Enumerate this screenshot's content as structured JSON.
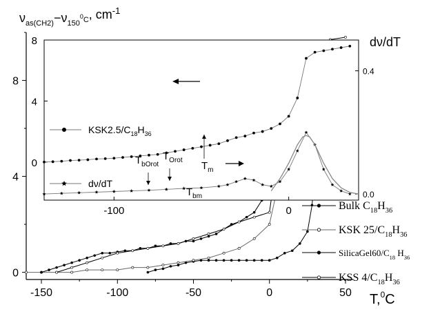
{
  "chart_data": [
    {
      "type": "line",
      "xlabel": "T,",
      "xlabel_sup": "0",
      "xlabel_unit": "C",
      "ylabel_nu": "ν",
      "ylabel_sub1": "as(CH2)",
      "ylabel_minus": "−ν",
      "ylabel_sub2": "150",
      "ylabel_sup2": "0",
      "ylabel_sub3": "C",
      "ylabel_unit": ", cm",
      "ylabel_unit_sup": "-1",
      "xlim": [
        -160,
        55
      ],
      "ylim": [
        -0.3,
        10
      ],
      "xticks": [
        "-150",
        "-100",
        "-50",
        "0",
        "50"
      ],
      "xtick_values": [
        -150,
        -100,
        -50,
        0,
        50
      ],
      "yticks": [
        "0",
        "4",
        "8"
      ],
      "ytick_values": [
        0,
        4,
        8
      ],
      "legend_position": "bottom-right",
      "series": [
        {
          "name_main": "Bulk C",
          "name_sub": "18",
          "name_h": "H",
          "name_sub2": "36",
          "marker": "dot",
          "points": [
            [
              -80,
              0.0
            ],
            [
              -75,
              0.1
            ],
            [
              -70,
              0.15
            ],
            [
              -65,
              0.25
            ],
            [
              -60,
              0.3
            ],
            [
              -55,
              0.4
            ],
            [
              -50,
              0.45
            ],
            [
              -45,
              0.5
            ],
            [
              -40,
              0.5
            ],
            [
              -35,
              0.5
            ],
            [
              -30,
              0.5
            ],
            [
              -25,
              0.5
            ],
            [
              -20,
              0.5
            ],
            [
              -15,
              0.5
            ],
            [
              -10,
              0.5
            ],
            [
              -5,
              0.5
            ],
            [
              0,
              0.5
            ],
            [
              5,
              0.6
            ],
            [
              10,
              0.8
            ],
            [
              15,
              0.9
            ],
            [
              20,
              1.2
            ],
            [
              25,
              1.7
            ],
            [
              28,
              2.8
            ],
            [
              30,
              4.3
            ],
            [
              32,
              6.1
            ],
            [
              35,
              7.8
            ],
            [
              38,
              7.9
            ],
            [
              40,
              8.0
            ],
            [
              45,
              8.2
            ],
            [
              48,
              8.4
            ],
            [
              50,
              8.4
            ]
          ]
        },
        {
          "name_main": "KSK 25/C",
          "name_sub": "18",
          "name_h": "H",
          "name_sub2": "36",
          "marker": "open",
          "points": [
            [
              -160,
              0.0
            ],
            [
              -150,
              0.0
            ],
            [
              -140,
              0.0
            ],
            [
              -130,
              0.0
            ],
            [
              -120,
              0.1
            ],
            [
              -110,
              0.1
            ],
            [
              -100,
              0.1
            ],
            [
              -90,
              0.2
            ],
            [
              -80,
              0.2
            ],
            [
              -70,
              0.3
            ],
            [
              -60,
              0.4
            ],
            [
              -50,
              0.5
            ],
            [
              -40,
              0.6
            ],
            [
              -30,
              0.8
            ],
            [
              -20,
              1.0
            ],
            [
              -10,
              1.4
            ],
            [
              0,
              2.0
            ],
            [
              10,
              4.9
            ],
            [
              20,
              7.0
            ],
            [
              30,
              7.2
            ],
            [
              40,
              7.3
            ],
            [
              50,
              7.5
            ]
          ]
        },
        {
          "name_main": "SilicaGel60/C",
          "name_sub": "18",
          "name_h": " H",
          "name_sub2": "36",
          "marker": "dot",
          "points": [
            [
              -150,
              0.0
            ],
            [
              -145,
              0.1
            ],
            [
              -140,
              0.2
            ],
            [
              -135,
              0.3
            ],
            [
              -130,
              0.4
            ],
            [
              -125,
              0.5
            ],
            [
              -120,
              0.6
            ],
            [
              -115,
              0.7
            ],
            [
              -110,
              0.8
            ],
            [
              -105,
              0.8
            ],
            [
              -100,
              0.85
            ],
            [
              -95,
              0.9
            ],
            [
              -90,
              0.9
            ],
            [
              -85,
              1.0
            ],
            [
              -80,
              1.0
            ],
            [
              -75,
              1.1
            ],
            [
              -70,
              1.1
            ],
            [
              -65,
              1.2
            ],
            [
              -60,
              1.2
            ],
            [
              -55,
              1.3
            ],
            [
              -50,
              1.3
            ],
            [
              -45,
              1.4
            ],
            [
              -40,
              1.5
            ],
            [
              -35,
              1.6
            ],
            [
              -30,
              1.8
            ],
            [
              -25,
              2.0
            ],
            [
              -20,
              2.1
            ],
            [
              -15,
              2.3
            ],
            [
              -10,
              2.5
            ],
            [
              -5,
              3.0
            ],
            [
              0,
              3.8
            ],
            [
              5,
              5.3
            ],
            [
              10,
              6.9
            ],
            [
              15,
              8.1
            ],
            [
              20,
              8.3
            ],
            [
              25,
              8.5
            ],
            [
              30,
              8.6
            ],
            [
              35,
              8.7
            ],
            [
              40,
              8.7
            ],
            [
              45,
              8.8
            ],
            [
              50,
              9.0
            ]
          ]
        },
        {
          "name_main": "KSS 4/C",
          "name_sub": "18",
          "name_h": "H",
          "name_sub2": "36",
          "marker": "open",
          "points": [
            [
              -140,
              0.0
            ],
            [
              -130,
              0.2
            ],
            [
              -120,
              0.4
            ],
            [
              -110,
              0.6
            ],
            [
              -100,
              0.8
            ],
            [
              -90,
              0.9
            ],
            [
              -80,
              1.0
            ],
            [
              -70,
              1.1
            ],
            [
              -60,
              1.2
            ],
            [
              -50,
              1.4
            ],
            [
              -40,
              1.6
            ],
            [
              -30,
              1.8
            ],
            [
              -20,
              2.1
            ],
            [
              -10,
              2.3
            ],
            [
              0,
              2.5
            ],
            [
              10,
              7.0
            ],
            [
              20,
              9.2
            ],
            [
              30,
              9.5
            ],
            [
              40,
              9.7
            ],
            [
              50,
              9.8
            ]
          ]
        }
      ]
    },
    {
      "type": "line",
      "xlim": [
        -140,
        40
      ],
      "ylim_left": [
        -2.5,
        8
      ],
      "ylim_right": [
        -0.02,
        0.5
      ],
      "xticks": [
        "-100",
        "0"
      ],
      "xtick_values": [
        -100,
        0
      ],
      "yticks_left": [
        "0",
        "4",
        "8"
      ],
      "ytick_values_left": [
        0,
        4,
        8
      ],
      "yticks_right": [
        "0.0",
        "0.4"
      ],
      "ytick_values_right": [
        0,
        0.4
      ],
      "right_axis_label": "dν/dT",
      "series": [
        {
          "name_main": "KSK2.5/C",
          "name_sub": "18",
          "name_h": "H",
          "name_sub2": "36",
          "axis": "left",
          "marker": "dot",
          "points": [
            [
              -140,
              0.0
            ],
            [
              -135,
              0.02
            ],
            [
              -130,
              0.05
            ],
            [
              -125,
              0.1
            ],
            [
              -120,
              0.12
            ],
            [
              -115,
              0.15
            ],
            [
              -110,
              0.2
            ],
            [
              -105,
              0.22
            ],
            [
              -100,
              0.25
            ],
            [
              -95,
              0.3
            ],
            [
              -90,
              0.35
            ],
            [
              -85,
              0.4
            ],
            [
              -80,
              0.45
            ],
            [
              -75,
              0.5
            ],
            [
              -70,
              0.6
            ],
            [
              -65,
              0.7
            ],
            [
              -60,
              0.8
            ],
            [
              -55,
              0.9
            ],
            [
              -50,
              1.0
            ],
            [
              -45,
              1.1
            ],
            [
              -40,
              1.2
            ],
            [
              -35,
              1.4
            ],
            [
              -30,
              1.6
            ],
            [
              -25,
              1.7
            ],
            [
              -20,
              1.9
            ],
            [
              -15,
              2.0
            ],
            [
              -10,
              2.2
            ],
            [
              -5,
              2.5
            ],
            [
              0,
              3.0
            ],
            [
              5,
              4.2
            ],
            [
              10,
              6.8
            ],
            [
              15,
              7.2
            ],
            [
              20,
              7.3
            ],
            [
              25,
              7.4
            ],
            [
              30,
              7.5
            ],
            [
              35,
              7.6
            ]
          ]
        },
        {
          "name": "dν/dT",
          "axis": "right",
          "marker": "star",
          "points": [
            [
              -140,
              0.0
            ],
            [
              -130,
              0.002
            ],
            [
              -120,
              0.004
            ],
            [
              -110,
              0.006
            ],
            [
              -100,
              0.008
            ],
            [
              -90,
              0.01
            ],
            [
              -80,
              0.012
            ],
            [
              -70,
              0.015
            ],
            [
              -60,
              0.018
            ],
            [
              -50,
              0.02
            ],
            [
              -40,
              0.025
            ],
            [
              -35,
              0.03
            ],
            [
              -30,
              0.04
            ],
            [
              -25,
              0.05
            ],
            [
              -20,
              0.045
            ],
            [
              -15,
              0.03
            ],
            [
              -10,
              0.025
            ],
            [
              -5,
              0.04
            ],
            [
              0,
              0.08
            ],
            [
              5,
              0.14
            ],
            [
              10,
              0.2
            ],
            [
              15,
              0.16
            ],
            [
              20,
              0.08
            ],
            [
              25,
              0.03
            ],
            [
              30,
              0.01
            ],
            [
              35,
              0.0
            ]
          ]
        },
        {
          "name": "",
          "axis": "right",
          "marker": "none",
          "points": [
            [
              -10,
              0.01
            ],
            [
              -5,
              0.05
            ],
            [
              0,
              0.1
            ],
            [
              5,
              0.16
            ],
            [
              8,
              0.185
            ],
            [
              10,
              0.19
            ],
            [
              12,
              0.185
            ],
            [
              15,
              0.16
            ],
            [
              20,
              0.1
            ],
            [
              25,
              0.05
            ],
            [
              30,
              0.02
            ],
            [
              35,
              0.005
            ],
            [
              40,
              0.0
            ]
          ]
        }
      ],
      "annotations": [
        {
          "text": "T",
          "sub": "bOrot"
        },
        {
          "text": "T",
          "sub": "Orot"
        },
        {
          "text": "T",
          "sub": "bm"
        },
        {
          "text": "T",
          "sub": "m"
        }
      ]
    }
  ]
}
